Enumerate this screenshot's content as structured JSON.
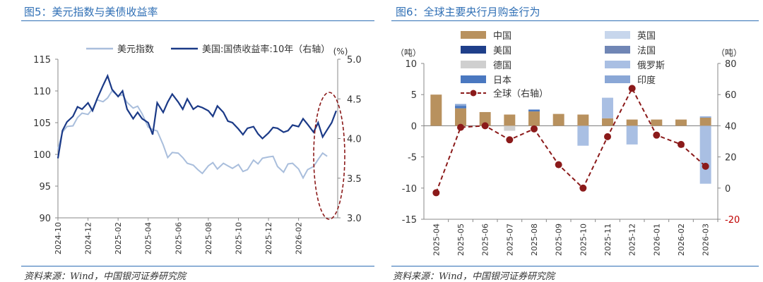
{
  "left": {
    "title": "图5：美元指数与美债收益率",
    "source": "资料来源：Wind，中国银河证券研究院",
    "colors": {
      "dxy": "#a9bedc",
      "ust": "#1b3a87",
      "ellipse": "#8b1a1a",
      "axis": "#888888",
      "rule": "#2f6fb5"
    },
    "chart_data": {
      "type": "line",
      "legend": [
        "美元指数",
        "美国:国债收益率:10年（右轴）"
      ],
      "x_ticks": [
        "2024-10",
        "2024-12",
        "2025-02",
        "2025-04",
        "2025-06",
        "2025-08",
        "2025-10",
        "2025-12",
        "2026-02"
      ],
      "y_left": {
        "range": [
          90,
          115
        ],
        "ticks": [
          "115",
          "110",
          "105",
          "100",
          "95",
          "90"
        ]
      },
      "y_right": {
        "unit": "(%)",
        "range": [
          3.0,
          5.0
        ],
        "ticks": [
          "5.0",
          "4.5",
          "4.0",
          "3.5",
          "3.0"
        ]
      },
      "series": [
        {
          "name": "美元指数",
          "axis": "left",
          "points": [
            [
              0,
              100.8
            ],
            [
              0.3,
              103.5
            ],
            [
              0.6,
              104.4
            ],
            [
              1,
              104.5
            ],
            [
              1.3,
              105.8
            ],
            [
              1.6,
              106.5
            ],
            [
              2,
              106.3
            ],
            [
              2.3,
              107.2
            ],
            [
              2.6,
              108.6
            ],
            [
              3,
              108.3
            ],
            [
              3.3,
              108.9
            ],
            [
              3.6,
              110.0
            ],
            [
              4,
              109.2
            ],
            [
              4.3,
              109.4
            ],
            [
              4.6,
              108.2
            ],
            [
              5,
              107.3
            ],
            [
              5.3,
              107.6
            ],
            [
              5.6,
              106.4
            ],
            [
              6,
              104.3
            ],
            [
              6.3,
              103.9
            ],
            [
              6.6,
              103.7
            ],
            [
              7,
              101.5
            ],
            [
              7.3,
              99.5
            ],
            [
              7.6,
              100.3
            ],
            [
              8,
              100.2
            ],
            [
              8.3,
              99.5
            ],
            [
              8.6,
              98.6
            ],
            [
              9,
              98.3
            ],
            [
              9.3,
              97.6
            ],
            [
              9.6,
              97.0
            ],
            [
              10,
              98.2
            ],
            [
              10.3,
              98.7
            ],
            [
              10.6,
              97.7
            ],
            [
              11,
              98.6
            ],
            [
              11.3,
              98.2
            ],
            [
              11.6,
              97.8
            ],
            [
              12,
              98.4
            ],
            [
              12.3,
              97.3
            ],
            [
              12.6,
              97.6
            ],
            [
              13,
              99.1
            ],
            [
              13.3,
              98.5
            ],
            [
              13.6,
              99.4
            ],
            [
              14,
              99.6
            ],
            [
              14.3,
              99.7
            ],
            [
              14.6,
              98.1
            ],
            [
              15,
              97.2
            ],
            [
              15.3,
              98.5
            ],
            [
              15.6,
              98.6
            ],
            [
              16,
              97.7
            ],
            [
              16.3,
              96.3
            ],
            [
              16.6,
              97.6
            ],
            [
              17,
              98.1
            ],
            [
              17.3,
              99.2
            ],
            [
              17.6,
              100.2
            ],
            [
              17.9,
              99.7
            ]
          ]
        },
        {
          "name": "美国:国债收益率:10年（右轴）",
          "axis": "right",
          "points": [
            [
              0,
              3.75
            ],
            [
              0.3,
              4.1
            ],
            [
              0.6,
              4.21
            ],
            [
              1,
              4.28
            ],
            [
              1.3,
              4.4
            ],
            [
              1.6,
              4.37
            ],
            [
              2,
              4.45
            ],
            [
              2.3,
              4.35
            ],
            [
              2.6,
              4.5
            ],
            [
              3,
              4.67
            ],
            [
              3.3,
              4.79
            ],
            [
              3.6,
              4.62
            ],
            [
              4,
              4.53
            ],
            [
              4.3,
              4.6
            ],
            [
              4.6,
              4.37
            ],
            [
              5,
              4.25
            ],
            [
              5.3,
              4.33
            ],
            [
              5.6,
              4.25
            ],
            [
              6,
              4.2
            ],
            [
              6.3,
              4.05
            ],
            [
              6.6,
              4.45
            ],
            [
              7,
              4.33
            ],
            [
              7.3,
              4.46
            ],
            [
              7.6,
              4.56
            ],
            [
              8,
              4.46
            ],
            [
              8.3,
              4.37
            ],
            [
              8.6,
              4.5
            ],
            [
              9,
              4.37
            ],
            [
              9.3,
              4.41
            ],
            [
              9.6,
              4.39
            ],
            [
              10,
              4.35
            ],
            [
              10.3,
              4.28
            ],
            [
              10.6,
              4.41
            ],
            [
              11,
              4.33
            ],
            [
              11.3,
              4.22
            ],
            [
              11.6,
              4.2
            ],
            [
              12,
              4.12
            ],
            [
              12.3,
              4.05
            ],
            [
              12.6,
              4.13
            ],
            [
              13,
              4.15
            ],
            [
              13.3,
              4.06
            ],
            [
              13.6,
              4.0
            ],
            [
              14,
              4.07
            ],
            [
              14.3,
              4.14
            ],
            [
              14.6,
              4.13
            ],
            [
              15,
              4.08
            ],
            [
              15.3,
              4.1
            ],
            [
              15.6,
              4.17
            ],
            [
              16,
              4.15
            ],
            [
              16.3,
              4.25
            ],
            [
              16.6,
              4.18
            ],
            [
              17,
              4.08
            ],
            [
              17.3,
              4.2
            ],
            [
              17.6,
              4.02
            ],
            [
              17.9,
              4.11
            ],
            [
              18.2,
              4.2
            ],
            [
              18.5,
              4.35
            ]
          ]
        }
      ],
      "x_max": 18.6
    }
  },
  "right": {
    "title": "图6：全球主要央行月购金行为",
    "source": "资料来源：Wind，中国银河证券研究院",
    "colors": {
      "axis": "#888888",
      "world": "#8b1a1a",
      "rule": "#2f6fb5"
    },
    "chart_data": {
      "type": "bar",
      "categories": [
        "2025-04",
        "2025-05",
        "2025-06",
        "2025-07",
        "2025-08",
        "2025-09",
        "2025-10",
        "2025-11",
        "2025-12",
        "2026-01",
        "2026-02",
        "2026-03"
      ],
      "y_left": {
        "unit": "（吨）",
        "range": [
          -15,
          10
        ],
        "ticks": [
          "10",
          "5",
          "0",
          "-5",
          "-10",
          "-15"
        ]
      },
      "y_right": {
        "unit": "（吨）",
        "range": [
          -20,
          80
        ],
        "ticks": [
          "80",
          "60",
          "40",
          "20",
          "0",
          "-20"
        ]
      },
      "legend_labels": {
        "china": "中国",
        "uk": "英国",
        "usa": "美国",
        "france": "法国",
        "germany": "德国",
        "russia": "俄罗斯",
        "japan": "日本",
        "india": "印度",
        "world": "全球（右轴）"
      },
      "series_colors": {
        "china": "#b8915e",
        "uk": "#c7d6ec",
        "usa": "#1f3f8a",
        "france": "#7086b5",
        "germany": "#cfcfcf",
        "russia": "#a9bfe3",
        "japan": "#4a78c0",
        "india": "#8aa7d6"
      },
      "stacks": [
        {
          "china": 5.0
        },
        {
          "china": 2.8,
          "japan": 0.4,
          "india": 0.3
        },
        {
          "china": 2.2
        },
        {
          "china": 1.8,
          "germany": -0.8
        },
        {
          "china": 2.3,
          "japan": 0.3
        },
        {
          "china": 1.9
        },
        {
          "china": 1.8,
          "russia": -3.2
        },
        {
          "china": 1.2,
          "russia": 3.3
        },
        {
          "china": 1.0,
          "russia": -3.0
        },
        {
          "china": 1.0
        },
        {
          "china": 1.0
        },
        {
          "china": 1.3,
          "russia": -9.3,
          "india": 0.2
        }
      ],
      "world": [
        -3,
        39,
        40,
        31,
        38,
        15,
        0,
        33,
        64,
        34,
        28,
        14
      ]
    }
  }
}
